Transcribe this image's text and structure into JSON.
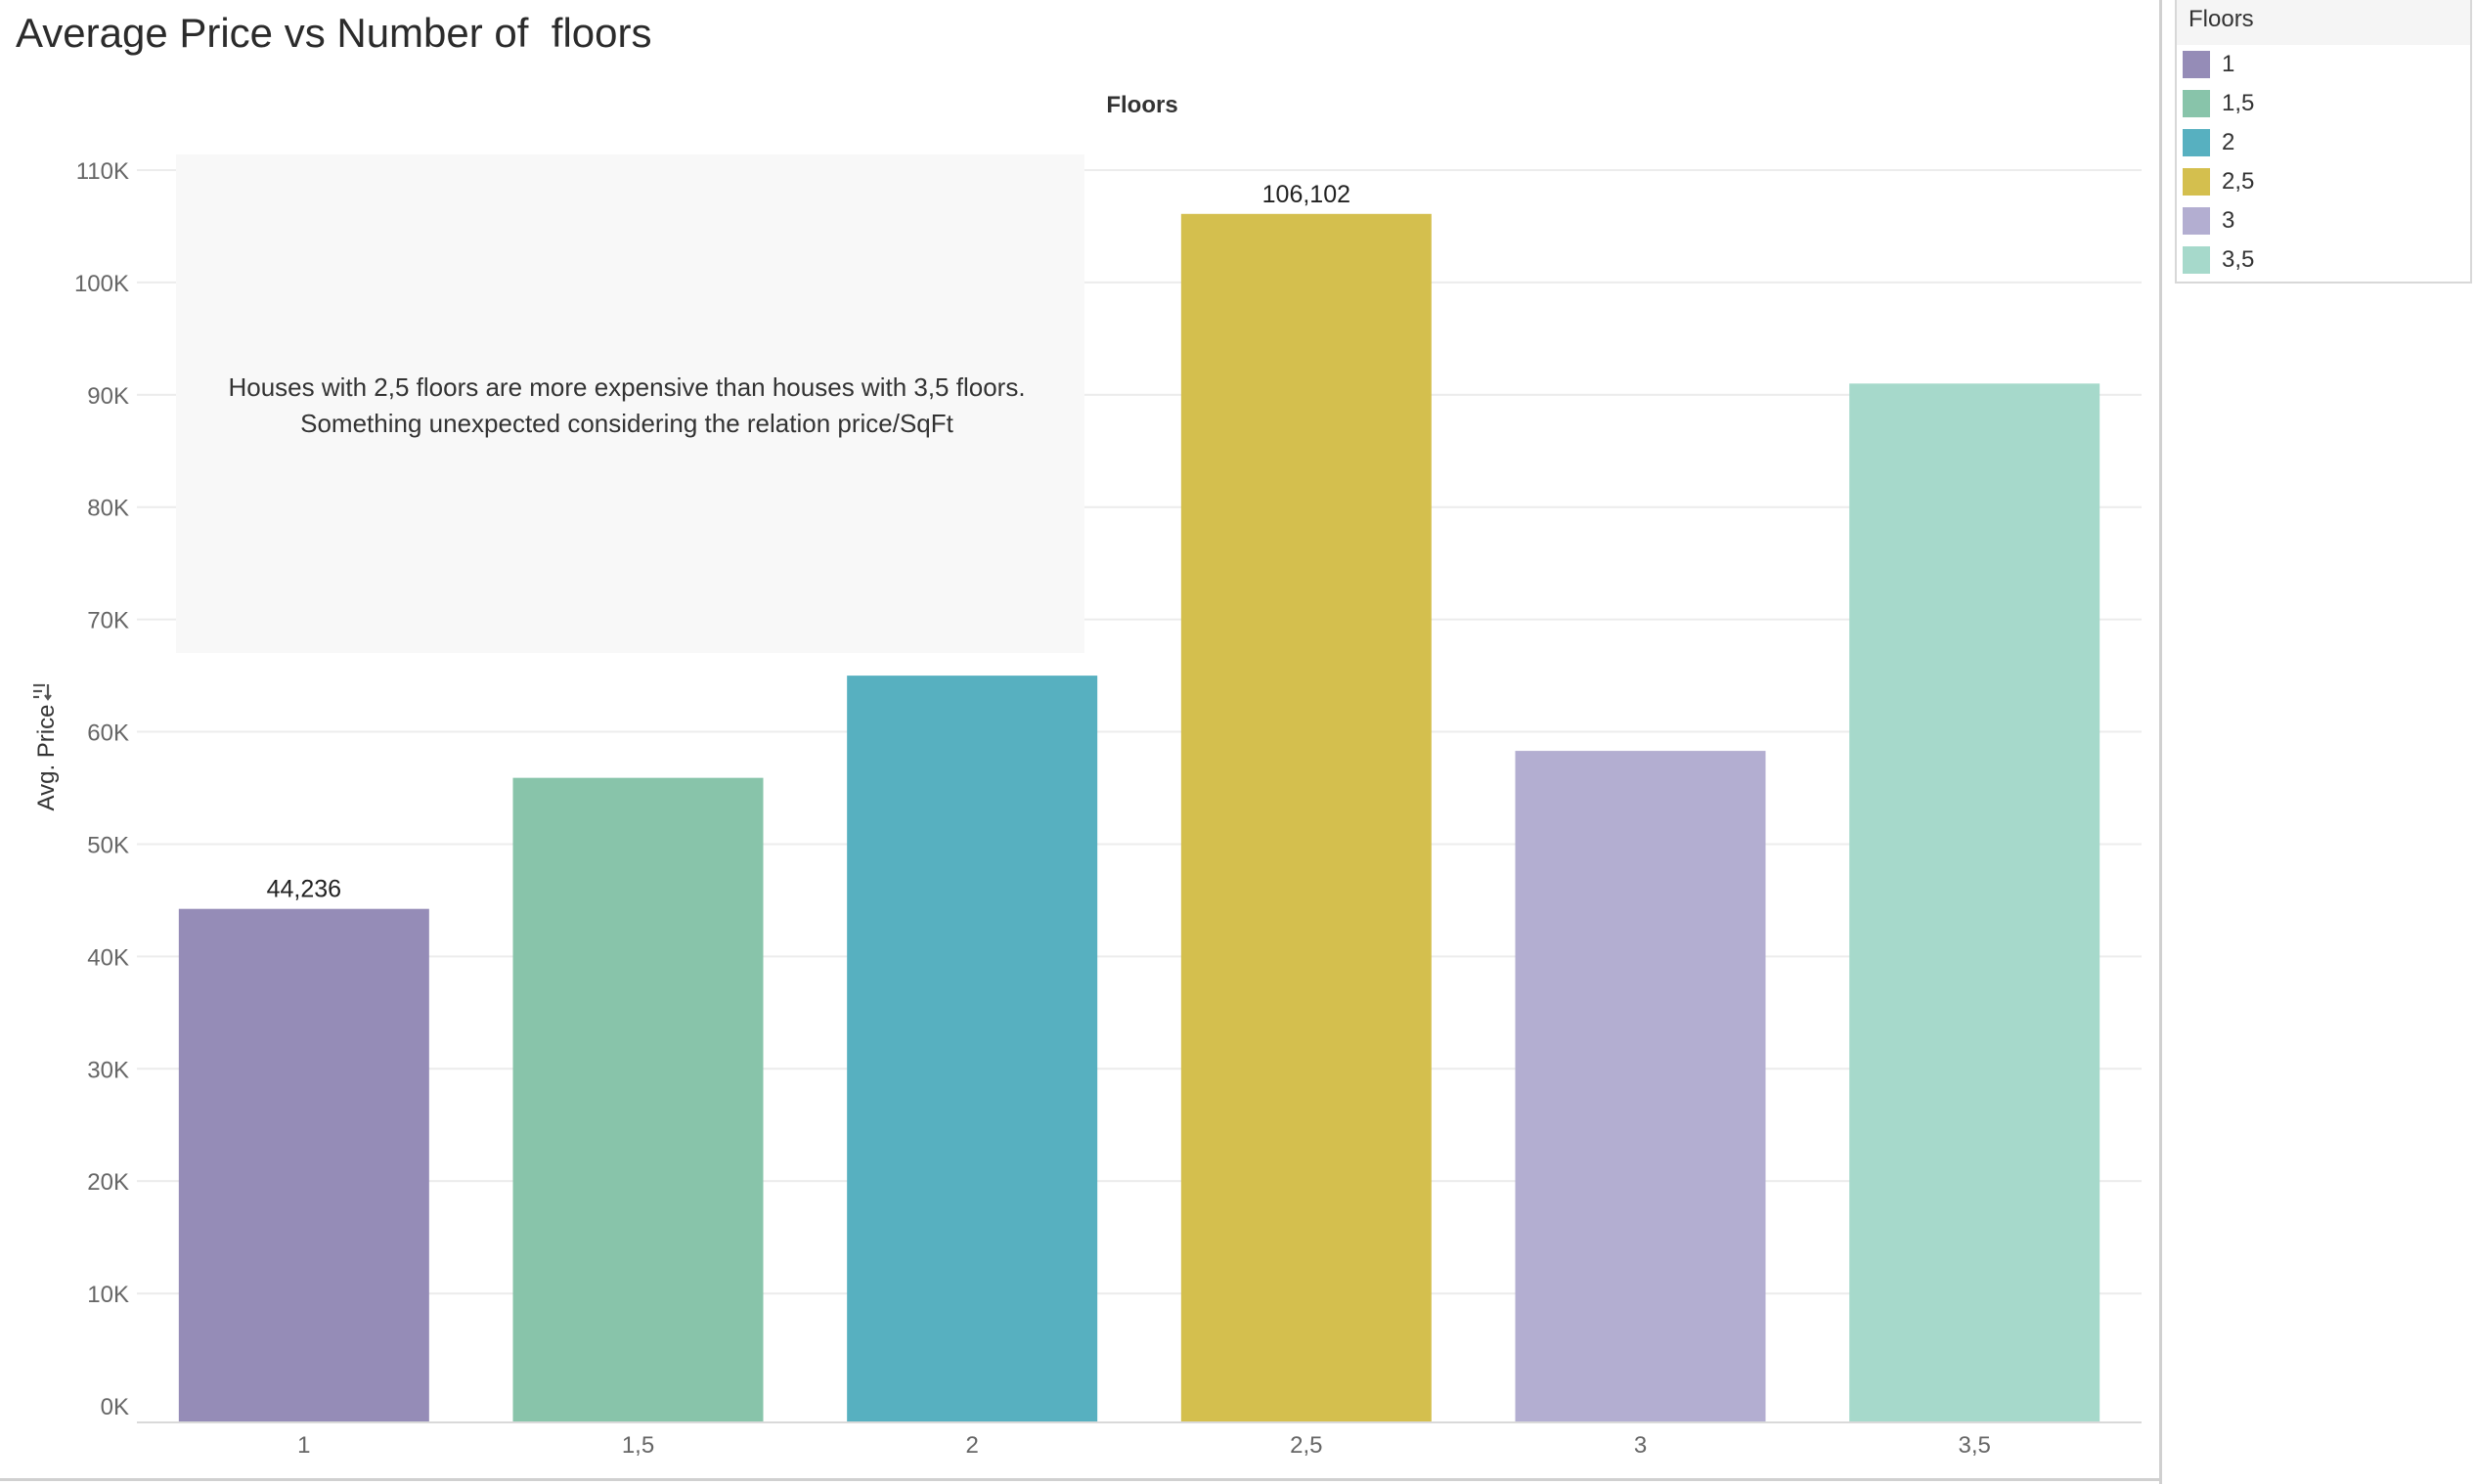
{
  "title": "Average Price vs Number of  floors",
  "legend": {
    "title": "Floors",
    "items": [
      {
        "label": "1",
        "color": "#958cb7"
      },
      {
        "label": "1,5",
        "color": "#88c4aa"
      },
      {
        "label": "2",
        "color": "#57b0c0"
      },
      {
        "label": "2,5",
        "color": "#d4bf4e"
      },
      {
        "label": "3",
        "color": "#b3aed1"
      },
      {
        "label": "3,5",
        "color": "#a6d9cb"
      }
    ]
  },
  "chart_data": {
    "type": "bar",
    "title": "Floors",
    "ylabel": "Avg. Price",
    "xlabel": "",
    "categories": [
      "1",
      "1,5",
      "2",
      "2,5",
      "3",
      "3,5"
    ],
    "values": [
      44236,
      55900,
      65000,
      106102,
      58300,
      91000
    ],
    "colors": [
      "#958cb7",
      "#88c4aa",
      "#57b0c0",
      "#d4bf4e",
      "#b3aed1",
      "#a6d9cb"
    ],
    "data_labels": [
      "44,236",
      "",
      "",
      "106,102",
      "",
      ""
    ],
    "ylim": [
      0,
      110000
    ],
    "yticks": [
      0,
      10000,
      20000,
      30000,
      40000,
      50000,
      60000,
      70000,
      80000,
      90000,
      100000,
      110000
    ],
    "ytick_labels": [
      "0K",
      "10K",
      "20K",
      "30K",
      "40K",
      "50K",
      "60K",
      "70K",
      "80K",
      "90K",
      "100K",
      "110K"
    ],
    "grid": true,
    "legend_position": "top-right",
    "annotation": {
      "lines": [
        "Houses with 2,5 floors are more expensive than houses with 3,5 floors.",
        "Something unexpected considering the relation price/SqFt"
      ]
    }
  }
}
